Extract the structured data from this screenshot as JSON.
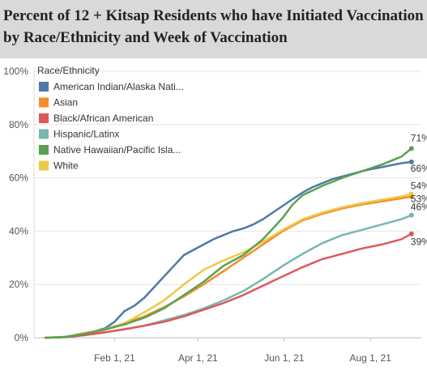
{
  "chart_data": {
    "type": "line",
    "title_lines": [
      "Percent of 12 + Kitsap Residents who have Initiated Vaccination",
      "by Race/Ethnicity and Week of Vaccination"
    ],
    "legend_title": "Race/Ethnicity",
    "legend_placement": "top-left",
    "xlabel": "",
    "ylabel": "",
    "x_tick_labels": [
      "Feb 1, 21",
      "Apr 1, 21",
      "Jun 1, 21",
      "Aug 1, 21"
    ],
    "x_ticks": [
      "2021-02-01",
      "2021-04-01",
      "2021-06-01",
      "2021-08-01"
    ],
    "xlim": [
      "2020-12-06",
      "2021-09-06"
    ],
    "y_tick_labels": [
      "0%",
      "20%",
      "40%",
      "60%",
      "80%",
      "100%"
    ],
    "y_ticks": [
      0,
      20,
      40,
      60,
      80,
      100
    ],
    "ylim": [
      0,
      100
    ],
    "grid": "horizontal",
    "series": [
      {
        "name": "American Indian/Alaska Nati...",
        "color": "#4e79a7",
        "end_label": "66%",
        "points": [
          [
            "2020-12-14",
            0
          ],
          [
            "2020-12-28",
            0.2
          ],
          [
            "2021-01-11",
            1.5
          ],
          [
            "2021-01-25",
            3.5
          ],
          [
            "2021-02-01",
            6
          ],
          [
            "2021-02-08",
            10
          ],
          [
            "2021-02-15",
            12
          ],
          [
            "2021-02-22",
            15
          ],
          [
            "2021-03-01",
            19
          ],
          [
            "2021-03-08",
            23
          ],
          [
            "2021-03-15",
            27
          ],
          [
            "2021-03-22",
            31
          ],
          [
            "2021-03-29",
            33
          ],
          [
            "2021-04-05",
            35
          ],
          [
            "2021-04-12",
            37
          ],
          [
            "2021-04-19",
            38.5
          ],
          [
            "2021-04-26",
            40
          ],
          [
            "2021-05-03",
            41
          ],
          [
            "2021-05-10",
            42.5
          ],
          [
            "2021-05-17",
            44.5
          ],
          [
            "2021-05-24",
            47
          ],
          [
            "2021-05-31",
            49.5
          ],
          [
            "2021-06-07",
            52
          ],
          [
            "2021-06-14",
            54.5
          ],
          [
            "2021-06-21",
            56.5
          ],
          [
            "2021-06-28",
            58
          ],
          [
            "2021-07-05",
            59.5
          ],
          [
            "2021-07-12",
            60.5
          ],
          [
            "2021-07-19",
            61.5
          ],
          [
            "2021-07-26",
            62.5
          ],
          [
            "2021-08-02",
            63.3
          ],
          [
            "2021-08-09",
            64
          ],
          [
            "2021-08-16",
            64.8
          ],
          [
            "2021-08-23",
            65.5
          ],
          [
            "2021-08-30",
            66
          ]
        ]
      },
      {
        "name": "Asian",
        "color": "#f28e2b",
        "end_label": "53%",
        "points": [
          [
            "2020-12-14",
            0
          ],
          [
            "2020-12-28",
            0.3
          ],
          [
            "2021-01-11",
            1.8
          ],
          [
            "2021-01-25",
            3.2
          ],
          [
            "2021-02-08",
            5.5
          ],
          [
            "2021-02-22",
            8
          ],
          [
            "2021-03-08",
            11.5
          ],
          [
            "2021-03-22",
            15.5
          ],
          [
            "2021-04-05",
            20
          ],
          [
            "2021-04-19",
            25
          ],
          [
            "2021-05-03",
            30
          ],
          [
            "2021-05-17",
            35
          ],
          [
            "2021-05-31",
            40
          ],
          [
            "2021-06-14",
            44
          ],
          [
            "2021-06-28",
            46.5
          ],
          [
            "2021-07-12",
            48.5
          ],
          [
            "2021-07-26",
            50
          ],
          [
            "2021-08-09",
            51.2
          ],
          [
            "2021-08-23",
            52.3
          ],
          [
            "2021-08-30",
            53
          ]
        ]
      },
      {
        "name": "Black/African American",
        "color": "#e15759",
        "end_label": "39%",
        "points": [
          [
            "2020-12-14",
            0
          ],
          [
            "2020-12-28",
            0.2
          ],
          [
            "2021-01-11",
            1
          ],
          [
            "2021-01-25",
            2
          ],
          [
            "2021-02-08",
            3.2
          ],
          [
            "2021-02-22",
            4.5
          ],
          [
            "2021-03-08",
            6
          ],
          [
            "2021-03-22",
            8
          ],
          [
            "2021-04-05",
            10.5
          ],
          [
            "2021-04-19",
            13
          ],
          [
            "2021-05-03",
            16
          ],
          [
            "2021-05-17",
            19.5
          ],
          [
            "2021-05-31",
            23
          ],
          [
            "2021-06-14",
            26.5
          ],
          [
            "2021-06-28",
            29.5
          ],
          [
            "2021-07-12",
            31.5
          ],
          [
            "2021-07-26",
            33.5
          ],
          [
            "2021-08-09",
            35
          ],
          [
            "2021-08-23",
            37
          ],
          [
            "2021-08-30",
            39
          ]
        ]
      },
      {
        "name": "Hispanic/Latinx",
        "color": "#76b7b2",
        "end_label": "46%",
        "points": [
          [
            "2020-12-14",
            0
          ],
          [
            "2020-12-28",
            0.2
          ],
          [
            "2021-01-11",
            1
          ],
          [
            "2021-01-25",
            2
          ],
          [
            "2021-02-08",
            3.2
          ],
          [
            "2021-02-22",
            4.5
          ],
          [
            "2021-03-08",
            6.5
          ],
          [
            "2021-03-22",
            8.5
          ],
          [
            "2021-04-05",
            11
          ],
          [
            "2021-04-19",
            14
          ],
          [
            "2021-05-03",
            17.5
          ],
          [
            "2021-05-17",
            22
          ],
          [
            "2021-05-31",
            27
          ],
          [
            "2021-06-14",
            31.5
          ],
          [
            "2021-06-28",
            35.5
          ],
          [
            "2021-07-12",
            38.5
          ],
          [
            "2021-07-26",
            40.5
          ],
          [
            "2021-08-09",
            42.5
          ],
          [
            "2021-08-23",
            44.5
          ],
          [
            "2021-08-30",
            46
          ]
        ]
      },
      {
        "name": "Native Hawaiian/Pacific Isla...",
        "color": "#59a14f",
        "end_label": "71%",
        "points": [
          [
            "2020-12-14",
            0
          ],
          [
            "2020-12-28",
            0.3
          ],
          [
            "2021-01-11",
            1.5
          ],
          [
            "2021-01-25",
            3
          ],
          [
            "2021-02-08",
            5
          ],
          [
            "2021-02-22",
            7.5
          ],
          [
            "2021-03-08",
            11
          ],
          [
            "2021-03-22",
            16
          ],
          [
            "2021-04-05",
            21
          ],
          [
            "2021-04-19",
            27
          ],
          [
            "2021-05-03",
            31
          ],
          [
            "2021-05-17",
            37
          ],
          [
            "2021-05-31",
            45
          ],
          [
            "2021-06-07",
            50
          ],
          [
            "2021-06-14",
            53.5
          ],
          [
            "2021-06-28",
            57
          ],
          [
            "2021-07-12",
            60
          ],
          [
            "2021-07-26",
            62.5
          ],
          [
            "2021-08-09",
            65
          ],
          [
            "2021-08-23",
            68
          ],
          [
            "2021-08-30",
            71
          ]
        ]
      },
      {
        "name": "White",
        "color": "#edc948",
        "end_label": "54%",
        "points": [
          [
            "2020-12-14",
            0
          ],
          [
            "2020-12-28",
            0.3
          ],
          [
            "2021-01-11",
            1.6
          ],
          [
            "2021-01-25",
            3
          ],
          [
            "2021-02-08",
            5.5
          ],
          [
            "2021-02-22",
            9.5
          ],
          [
            "2021-03-08",
            14
          ],
          [
            "2021-03-22",
            20
          ],
          [
            "2021-04-05",
            25.5
          ],
          [
            "2021-04-19",
            29
          ],
          [
            "2021-05-03",
            32
          ],
          [
            "2021-05-17",
            36
          ],
          [
            "2021-05-31",
            40.5
          ],
          [
            "2021-06-14",
            44.5
          ],
          [
            "2021-06-28",
            47
          ],
          [
            "2021-07-12",
            49
          ],
          [
            "2021-07-26",
            50.5
          ],
          [
            "2021-08-09",
            51.8
          ],
          [
            "2021-08-23",
            53
          ],
          [
            "2021-08-30",
            54
          ]
        ]
      }
    ]
  }
}
